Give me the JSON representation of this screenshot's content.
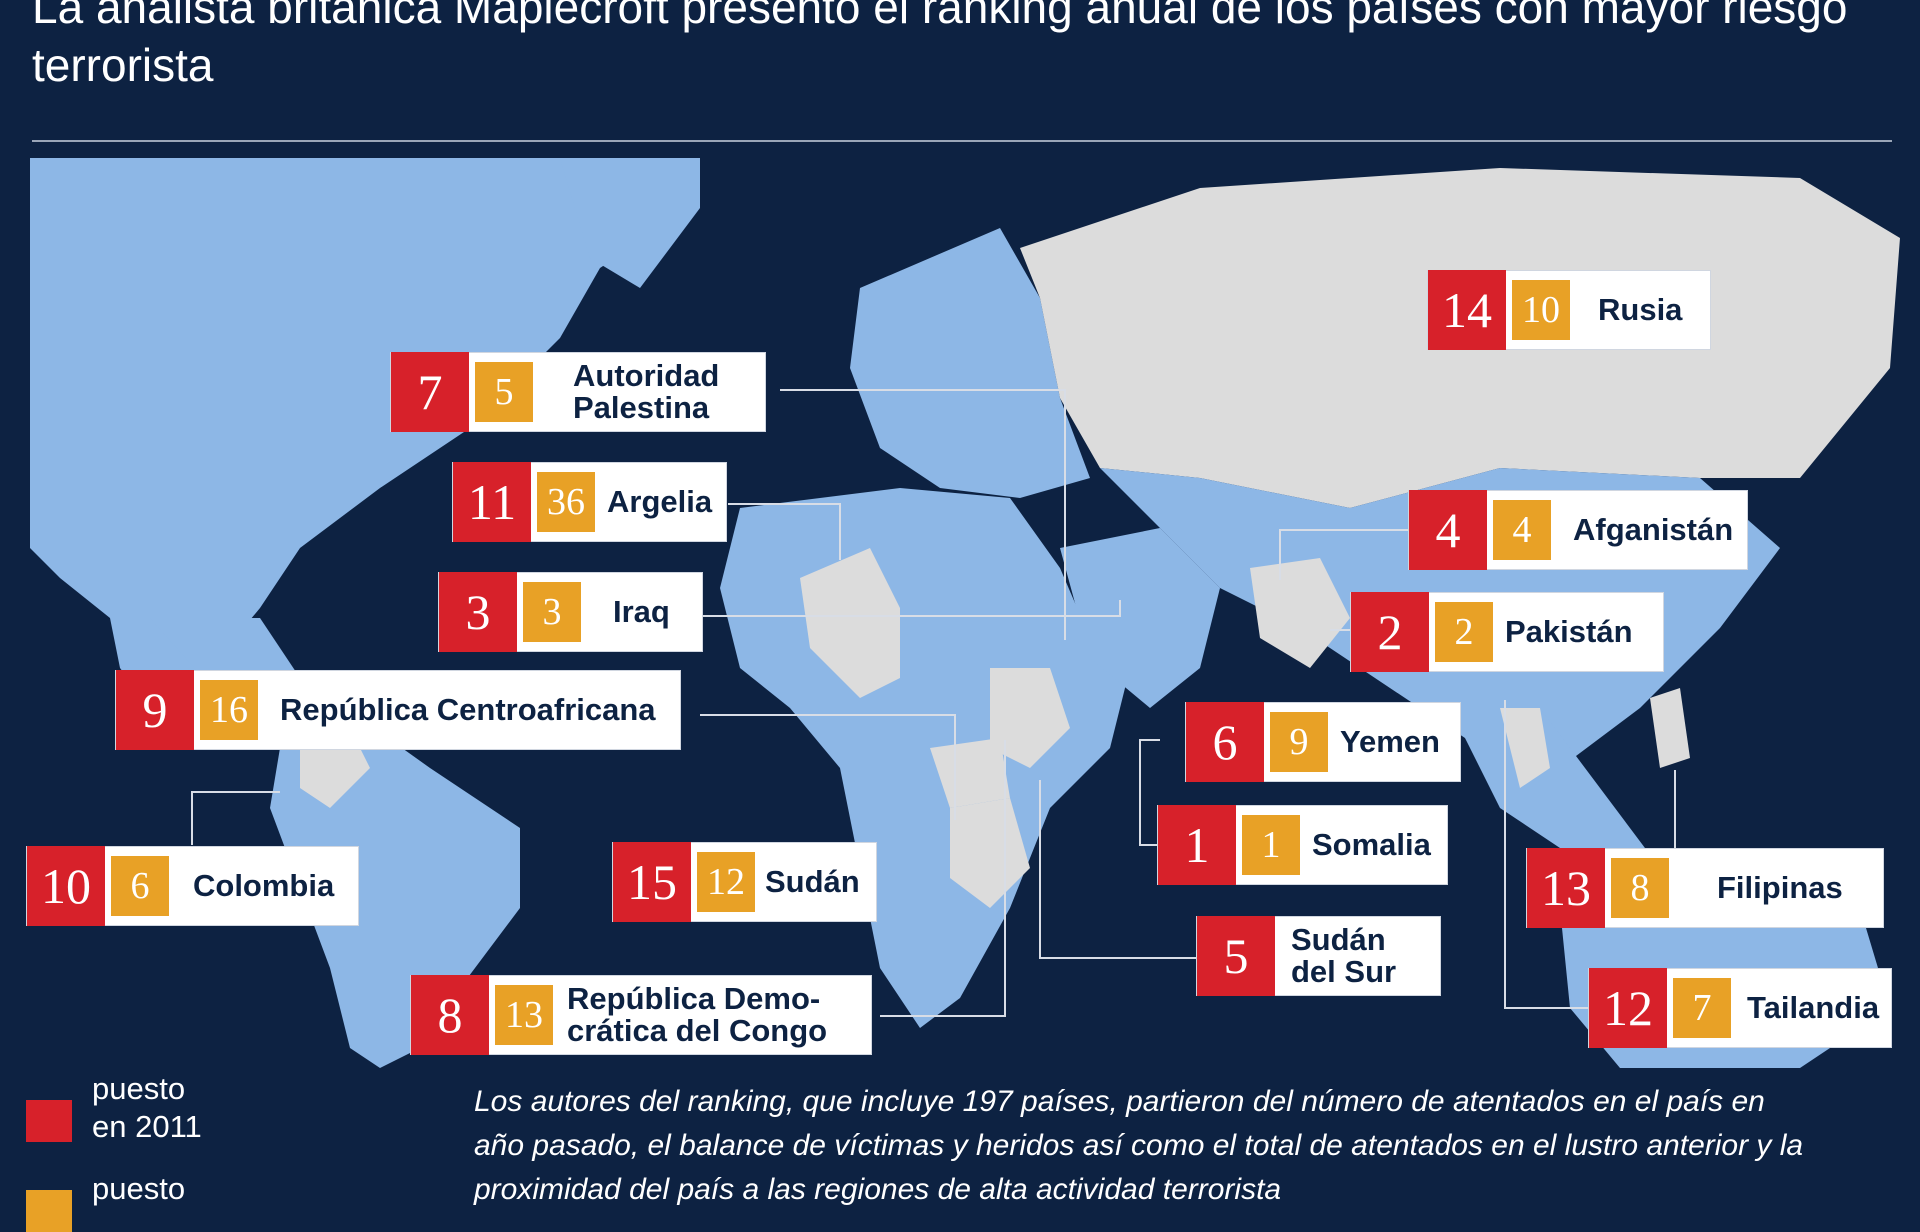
{
  "title": "La analista británica Maplecroft presentó el ranking anual de los países con mayor riesgo terrorista",
  "colors": {
    "background": "#0d2242",
    "land": "#8db7e6",
    "highlight_land": "#dcdcdc",
    "rank_2011": "#d7212a",
    "rank_2012": "#e8a126"
  },
  "countries": [
    {
      "name": "Rusia",
      "rank_2011": "14",
      "rank_2012": "10"
    },
    {
      "name": "Autoridad\nPalestina",
      "rank_2011": "7",
      "rank_2012": "5"
    },
    {
      "name": "Argelia",
      "rank_2011": "11",
      "rank_2012": "36"
    },
    {
      "name": "Afganistán",
      "rank_2011": "4",
      "rank_2012": "4"
    },
    {
      "name": "Iraq",
      "rank_2011": "3",
      "rank_2012": "3"
    },
    {
      "name": "Pakistán",
      "rank_2011": "2",
      "rank_2012": "2"
    },
    {
      "name": "República Centroafricana",
      "rank_2011": "9",
      "rank_2012": "16"
    },
    {
      "name": "Yemen",
      "rank_2011": "6",
      "rank_2012": "9"
    },
    {
      "name": "Somalia",
      "rank_2011": "1",
      "rank_2012": "1"
    },
    {
      "name": "Colombia",
      "rank_2011": "10",
      "rank_2012": "6"
    },
    {
      "name": "Sudán",
      "rank_2011": "15",
      "rank_2012": "12"
    },
    {
      "name": "Filipinas",
      "rank_2011": "13",
      "rank_2012": "8"
    },
    {
      "name": "Sudán\ndel Sur",
      "rank_2011": "5",
      "rank_2012": ""
    },
    {
      "name": "República Demo-\ncrática del Congo",
      "rank_2011": "8",
      "rank_2012": "13"
    },
    {
      "name": "Tailandia",
      "rank_2011": "12",
      "rank_2012": "7"
    }
  ],
  "legend": {
    "rank_2011_label": "puesto\nen 2011",
    "rank_2012_label": "puesto"
  },
  "note": "Los autores del ranking, que incluye 197 países, partieron del número de atentados en el país en año pasado, el balance de víctimas y heridos así como el total de atentados en el lustro anterior y la proximidad del país a las regiones de alta actividad terrorista"
}
